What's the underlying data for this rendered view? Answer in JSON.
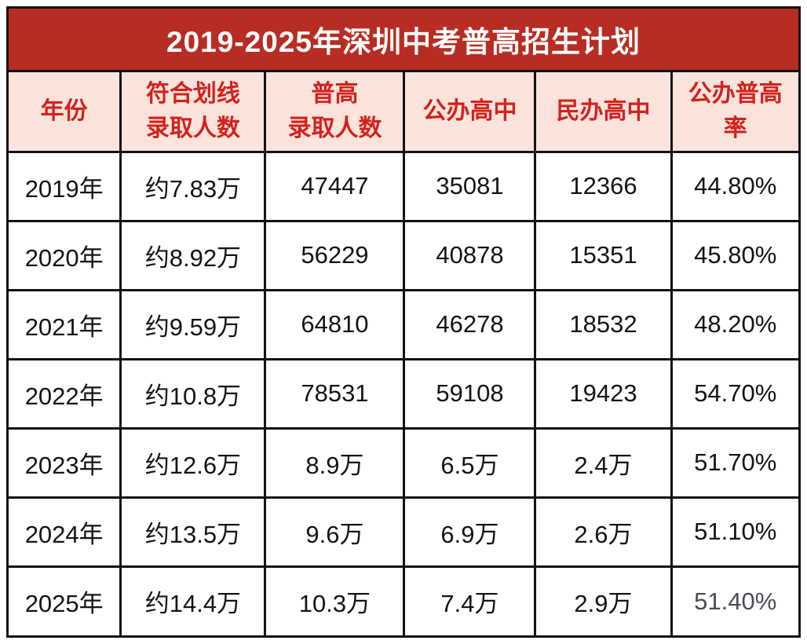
{
  "title": "2019-2025年深圳中考普高招生计划",
  "colors": {
    "title_bar_bg": "#b72d24",
    "title_text": "#ffffff",
    "header_bg": "#fce3dc",
    "header_text": "#d2231d",
    "border": "#131313",
    "cell_text": "#141414",
    "muted_cell_text": "#4c4c58"
  },
  "table": {
    "header_display": [
      "年份",
      "符合划线\n录取人数",
      "普高\n录取人数",
      "公办高中",
      "民办高中",
      "公办普高\n率"
    ],
    "muted_cell": {
      "row": 6,
      "col": 5
    }
  },
  "chart_data": {
    "type": "table",
    "title": "2019-2025年深圳中考普高招生计划",
    "columns": [
      "年份",
      "符合划线录取人数",
      "普高录取人数",
      "公办高中",
      "民办高中",
      "公办普高率"
    ],
    "rows": [
      [
        "2019年",
        "约7.83万",
        "47447",
        "35081",
        "12366",
        "44.80%"
      ],
      [
        "2020年",
        "约8.92万",
        "56229",
        "40878",
        "15351",
        "45.80%"
      ],
      [
        "2021年",
        "约9.59万",
        "64810",
        "46278",
        "18532",
        "48.20%"
      ],
      [
        "2022年",
        "约10.8万",
        "78531",
        "59108",
        "19423",
        "54.70%"
      ],
      [
        "2023年",
        "约12.6万",
        "8.9万",
        "6.5万",
        "2.4万",
        "51.70%"
      ],
      [
        "2024年",
        "约13.5万",
        "9.6万",
        "6.9万",
        "2.6万",
        "51.10%"
      ],
      [
        "2025年",
        "约14.4万",
        "10.3万",
        "7.4万",
        "2.9万",
        "51.40%"
      ]
    ]
  }
}
